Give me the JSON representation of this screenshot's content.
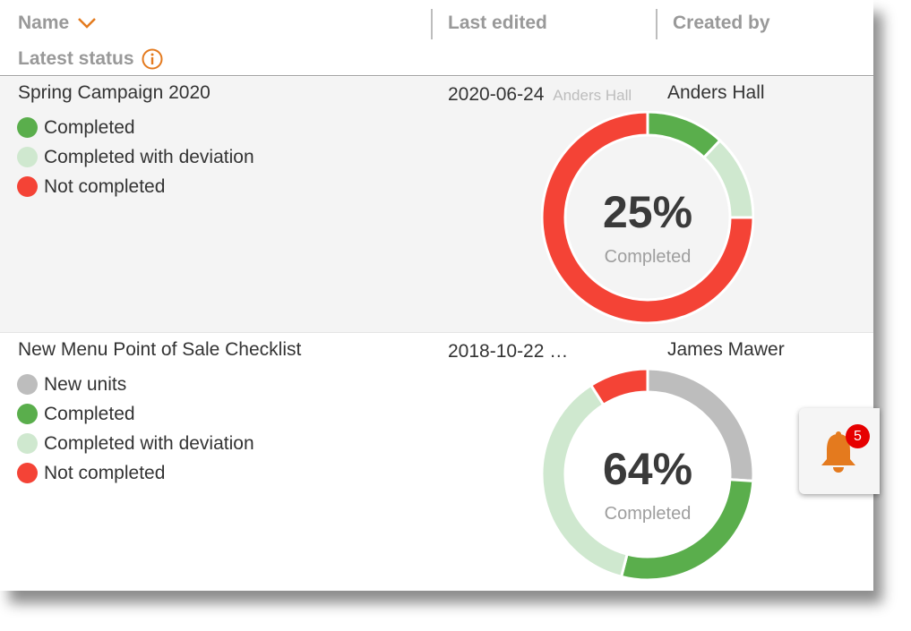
{
  "header": {
    "name_label": "Name",
    "last_edited_label": "Last edited",
    "created_by_label": "Created by",
    "latest_status_label": "Latest status",
    "accent_color": "#e47a1e"
  },
  "colors": {
    "completed": "#5aae4c",
    "completed_with_deviation": "#cfe8cf",
    "not_completed": "#f44336",
    "new_units": "#bdbdbd"
  },
  "rows": [
    {
      "title": "Spring Campaign 2020",
      "last_edited_date": "2020-06-24",
      "last_edited_by": "Anders Hall",
      "created_by": "Anders Hall",
      "legend": [
        {
          "label": "Completed",
          "color": "#5aae4c"
        },
        {
          "label": "Completed with deviation",
          "color": "#cfe8cf"
        },
        {
          "label": "Not completed",
          "color": "#f44336"
        }
      ],
      "percent_text": "25%",
      "percent_label": "Completed",
      "segments": [
        {
          "name": "Completed",
          "fraction": 0.12,
          "color": "#5aae4c"
        },
        {
          "name": "Completed with deviation",
          "fraction": 0.13,
          "color": "#cfe8cf"
        },
        {
          "name": "Not completed",
          "fraction": 0.75,
          "color": "#f44336"
        }
      ]
    },
    {
      "title": "New Menu Point of Sale Checklist",
      "last_edited_date": "2018-10-22 …",
      "created_by": "James Mawer",
      "legend": [
        {
          "label": "New units",
          "color": "#bdbdbd"
        },
        {
          "label": "Completed",
          "color": "#5aae4c"
        },
        {
          "label": "Completed with deviation",
          "color": "#cfe8cf"
        },
        {
          "label": "Not completed",
          "color": "#f44336"
        }
      ],
      "percent_text": "64%",
      "percent_label": "Completed",
      "segments": [
        {
          "name": "New units",
          "fraction": 0.26,
          "color": "#bdbdbd"
        },
        {
          "name": "Completed",
          "fraction": 0.28,
          "color": "#5aae4c"
        },
        {
          "name": "Completed with deviation",
          "fraction": 0.37,
          "color": "#cfe8cf"
        },
        {
          "name": "Not completed",
          "fraction": 0.09,
          "color": "#f44336"
        }
      ]
    }
  ],
  "notifications": {
    "count": "5",
    "icon": "bell-icon"
  }
}
